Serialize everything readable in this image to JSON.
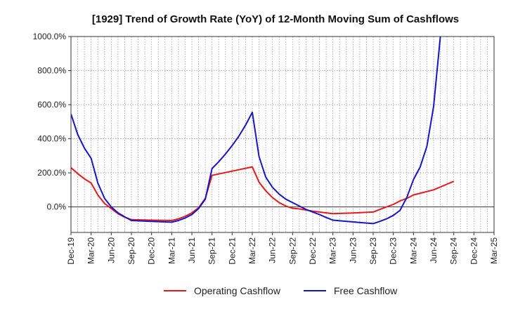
{
  "chart_data": {
    "type": "line",
    "title": "[1929]  Trend of Growth Rate (YoY) of 12-Month Moving Sum of Cashflows",
    "xlabel": "",
    "ylabel": "",
    "ylim": [
      -150,
      1000
    ],
    "y_ticks": [
      0,
      200,
      400,
      600,
      800,
      1000
    ],
    "y_tick_labels": [
      "0.0%",
      "200.0%",
      "400.0%",
      "600.0%",
      "800.0%",
      "1000.0%"
    ],
    "x_range": [
      "2019-12",
      "2025-03"
    ],
    "x_ticks": [
      "2019-12",
      "2020-03",
      "2020-06",
      "2020-09",
      "2020-12",
      "2021-03",
      "2021-06",
      "2021-09",
      "2021-12",
      "2022-03",
      "2022-06",
      "2022-09",
      "2022-12",
      "2023-03",
      "2023-06",
      "2023-09",
      "2023-12",
      "2024-03",
      "2024-06",
      "2024-09",
      "2024-12",
      "2025-03"
    ],
    "x_tick_labels": [
      "Dec-19",
      "Mar-20",
      "Jun-20",
      "Sep-20",
      "Dec-20",
      "Mar-21",
      "Jun-21",
      "Sep-21",
      "Dec-21",
      "Mar-22",
      "Jun-22",
      "Sep-22",
      "Dec-22",
      "Mar-23",
      "Jun-23",
      "Sep-23",
      "Dec-23",
      "Mar-24",
      "Jun-24",
      "Sep-24",
      "Dec-24",
      "Mar-25"
    ],
    "grid": true,
    "legend_position": "bottom-center",
    "series": [
      {
        "name": "Operating Cashflow",
        "color": "#e8191a",
        "points": [
          [
            "2019-12",
            230
          ],
          [
            "2020-01",
            195
          ],
          [
            "2020-02",
            165
          ],
          [
            "2020-03",
            140
          ],
          [
            "2020-04",
            70
          ],
          [
            "2020-05",
            20
          ],
          [
            "2020-06",
            -10
          ],
          [
            "2020-07",
            -40
          ],
          [
            "2020-08",
            -60
          ],
          [
            "2020-09",
            -75
          ],
          [
            "2020-12",
            -78
          ],
          [
            "2021-03",
            -80
          ],
          [
            "2021-04",
            -70
          ],
          [
            "2021-05",
            -55
          ],
          [
            "2021-06",
            -35
          ],
          [
            "2021-07",
            -5
          ],
          [
            "2021-08",
            50
          ],
          [
            "2021-09",
            185
          ],
          [
            "2021-12",
            210
          ],
          [
            "2022-03",
            235
          ],
          [
            "2022-04",
            145
          ],
          [
            "2022-05",
            95
          ],
          [
            "2022-06",
            55
          ],
          [
            "2022-07",
            25
          ],
          [
            "2022-08",
            5
          ],
          [
            "2022-09",
            -8
          ],
          [
            "2022-10",
            -12
          ],
          [
            "2022-11",
            -18
          ],
          [
            "2022-12",
            -25
          ],
          [
            "2023-03",
            -40
          ],
          [
            "2023-06",
            -36
          ],
          [
            "2023-09",
            -30
          ],
          [
            "2023-10",
            -15
          ],
          [
            "2023-11",
            0
          ],
          [
            "2023-12",
            15
          ],
          [
            "2024-01",
            35
          ],
          [
            "2024-02",
            50
          ],
          [
            "2024-03",
            70
          ],
          [
            "2024-06",
            100
          ],
          [
            "2024-09",
            150
          ]
        ]
      },
      {
        "name": "Free Cashflow",
        "color": "#1515cc",
        "points": [
          [
            "2019-12",
            545
          ],
          [
            "2020-01",
            425
          ],
          [
            "2020-02",
            345
          ],
          [
            "2020-03",
            285
          ],
          [
            "2020-04",
            140
          ],
          [
            "2020-05",
            50
          ],
          [
            "2020-06",
            0
          ],
          [
            "2020-07",
            -35
          ],
          [
            "2020-08",
            -58
          ],
          [
            "2020-09",
            -80
          ],
          [
            "2020-12",
            -85
          ],
          [
            "2021-03",
            -90
          ],
          [
            "2021-04",
            -80
          ],
          [
            "2021-05",
            -65
          ],
          [
            "2021-06",
            -45
          ],
          [
            "2021-07",
            -10
          ],
          [
            "2021-08",
            45
          ],
          [
            "2021-09",
            225
          ],
          [
            "2021-10",
            265
          ],
          [
            "2021-11",
            310
          ],
          [
            "2021-12",
            360
          ],
          [
            "2022-01",
            415
          ],
          [
            "2022-02",
            480
          ],
          [
            "2022-03",
            555
          ],
          [
            "2022-04",
            295
          ],
          [
            "2022-05",
            175
          ],
          [
            "2022-06",
            115
          ],
          [
            "2022-07",
            75
          ],
          [
            "2022-08",
            45
          ],
          [
            "2022-09",
            25
          ],
          [
            "2022-10",
            5
          ],
          [
            "2022-11",
            -15
          ],
          [
            "2022-12",
            -30
          ],
          [
            "2023-01",
            -45
          ],
          [
            "2023-02",
            -62
          ],
          [
            "2023-03",
            -78
          ],
          [
            "2023-06",
            -88
          ],
          [
            "2023-09",
            -98
          ],
          [
            "2023-10",
            -85
          ],
          [
            "2023-11",
            -70
          ],
          [
            "2023-12",
            -50
          ],
          [
            "2024-01",
            -20
          ],
          [
            "2024-02",
            55
          ],
          [
            "2024-03",
            160
          ],
          [
            "2024-04",
            235
          ],
          [
            "2024-05",
            355
          ],
          [
            "2024-06",
            590
          ],
          [
            "2024-07",
            1000
          ]
        ]
      }
    ]
  }
}
